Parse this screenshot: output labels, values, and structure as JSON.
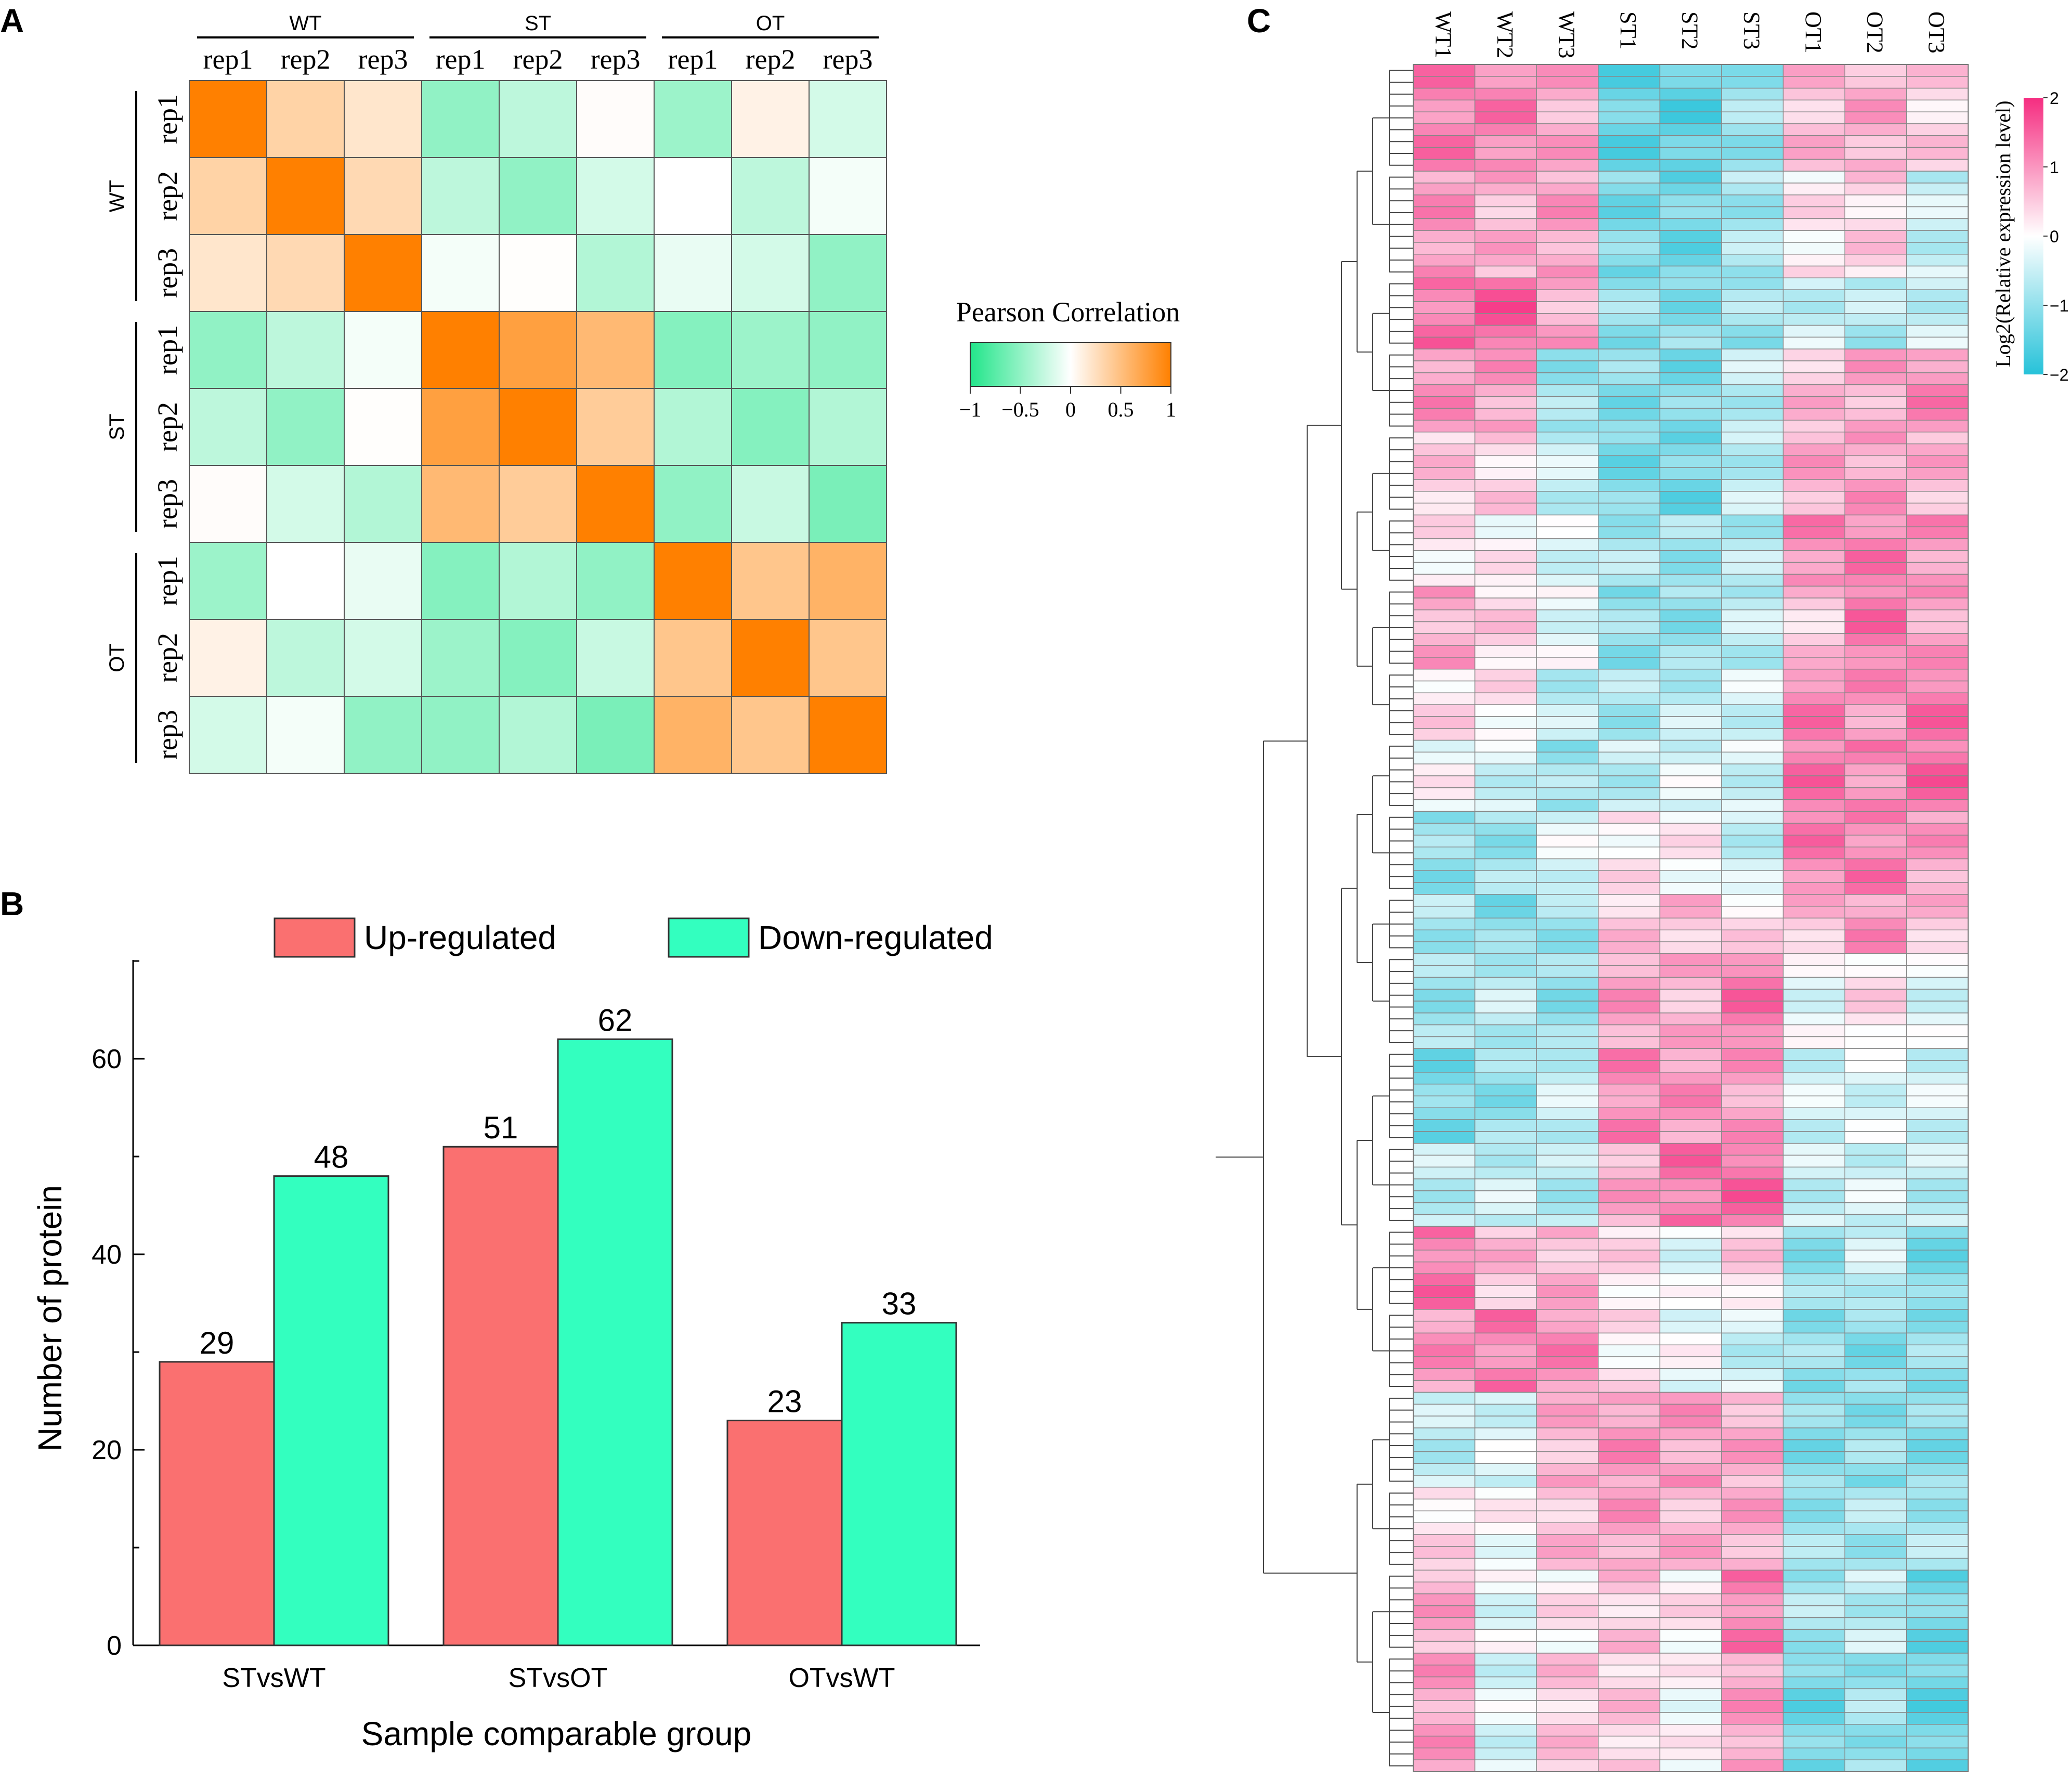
{
  "panels": {
    "a": "A",
    "b": "B",
    "c": "C"
  },
  "chart_data": [
    {
      "type": "heatmap",
      "panel": "A",
      "groups": [
        "WT",
        "ST",
        "OT"
      ],
      "reps": [
        "rep1",
        "rep2",
        "rep3"
      ],
      "samples": [
        "WT rep1",
        "WT rep2",
        "WT rep3",
        "ST rep1",
        "ST rep2",
        "ST rep3",
        "OT rep1",
        "OT rep2",
        "OT rep3"
      ],
      "matrix": [
        [
          1.0,
          0.35,
          0.2,
          -0.5,
          -0.3,
          0.02,
          -0.45,
          0.1,
          -0.2
        ],
        [
          0.35,
          1.0,
          0.3,
          -0.3,
          -0.5,
          -0.2,
          0.0,
          -0.3,
          -0.05
        ],
        [
          0.2,
          0.3,
          1.0,
          -0.05,
          0.01,
          -0.35,
          -0.1,
          -0.2,
          -0.5
        ],
        [
          -0.5,
          -0.3,
          -0.05,
          1.0,
          0.75,
          0.55,
          -0.55,
          -0.45,
          -0.5
        ],
        [
          -0.3,
          -0.5,
          0.01,
          0.75,
          1.0,
          0.4,
          -0.35,
          -0.55,
          -0.35
        ],
        [
          0.02,
          -0.2,
          -0.35,
          0.55,
          0.4,
          1.0,
          -0.5,
          -0.25,
          -0.6
        ],
        [
          -0.45,
          0.0,
          -0.1,
          -0.55,
          -0.35,
          -0.5,
          1.0,
          0.45,
          0.6
        ],
        [
          0.1,
          -0.3,
          -0.2,
          -0.45,
          -0.55,
          -0.25,
          0.45,
          1.0,
          0.45
        ],
        [
          -0.2,
          -0.05,
          -0.5,
          -0.5,
          -0.35,
          -0.6,
          0.6,
          0.45,
          1.0
        ]
      ],
      "colorbar": {
        "title": "Pearson Correlation",
        "ticks": [
          "−1",
          "−0.5",
          "0",
          "0.5",
          "1"
        ],
        "range": [
          -1,
          1
        ],
        "colors": {
          "low": "#22e58a",
          "mid": "#ffffff",
          "high": "#ff8000"
        }
      }
    },
    {
      "type": "bar",
      "panel": "B",
      "categories": [
        "STvsWT",
        "STvsOT",
        "OTvsWT"
      ],
      "series": [
        {
          "name": "Up-regulated",
          "values": [
            29,
            51,
            23
          ],
          "color": "#fa7070"
        },
        {
          "name": "Down-regulated",
          "values": [
            48,
            62,
            33
          ],
          "color": "#33ffbf"
        }
      ],
      "value_labels": [
        [
          "29",
          "51",
          "23"
        ],
        [
          "48",
          "62",
          "33"
        ]
      ],
      "xlabel": "Sample comparable group",
      "ylabel": "Number of protein",
      "ylim": [
        0,
        70
      ],
      "yticks": [
        "0",
        "20",
        "40",
        "60"
      ],
      "legend": "top"
    },
    {
      "type": "heatmap",
      "panel": "C",
      "columns": [
        "WT1",
        "WT2",
        "WT3",
        "ST1",
        "ST2",
        "ST3",
        "OT1",
        "OT2",
        "OT3"
      ],
      "row_clusters": [
        {
          "rows": 9,
          "profile": [
            1.2,
            1.2,
            0.8,
            -1.4,
            -1.5,
            -0.9,
            0.6,
            0.8,
            0.4
          ]
        },
        {
          "rows": 9,
          "profile": [
            1.0,
            0.7,
            0.9,
            -1.2,
            -1.3,
            -0.8,
            0.2,
            0.4,
            -0.5
          ]
        },
        {
          "rows": 6,
          "profile": [
            1.3,
            1.5,
            0.8,
            -1.0,
            -1.1,
            -0.9,
            -0.5,
            -0.7,
            -0.5
          ]
        },
        {
          "rows": 7,
          "profile": [
            1.0,
            0.9,
            -0.9,
            -1.1,
            -1.2,
            -0.6,
            0.6,
            0.8,
            1.1
          ]
        },
        {
          "rows": 7,
          "profile": [
            0.5,
            0.4,
            -0.5,
            -1.2,
            -1.3,
            -0.6,
            0.8,
            0.9,
            0.7
          ]
        },
        {
          "rows": 6,
          "profile": [
            0.2,
            0.1,
            -0.3,
            -0.8,
            -0.9,
            -0.7,
            1.1,
            1.2,
            1.0
          ]
        },
        {
          "rows": 7,
          "profile": [
            0.8,
            0.4,
            -0.2,
            -1.0,
            -1.0,
            -0.6,
            0.5,
            1.3,
            0.9
          ]
        },
        {
          "rows": 6,
          "profile": [
            0.3,
            0.2,
            -0.6,
            -0.8,
            -0.6,
            -0.4,
            1.2,
            1.0,
            1.3
          ]
        },
        {
          "rows": 6,
          "profile": [
            0.0,
            -0.4,
            -0.9,
            -0.6,
            -0.3,
            -0.4,
            1.3,
            1.1,
            1.4
          ]
        },
        {
          "rows": 7,
          "profile": [
            -1.0,
            -0.9,
            -0.3,
            0.2,
            0.1,
            -0.5,
            1.2,
            1.2,
            0.9
          ]
        },
        {
          "rows": 5,
          "profile": [
            -0.8,
            -1.1,
            -0.9,
            0.5,
            0.6,
            0.3,
            0.6,
            1.0,
            0.6
          ]
        },
        {
          "rows": 8,
          "profile": [
            -0.9,
            -0.6,
            -1.0,
            0.9,
            0.7,
            1.3,
            -0.2,
            0.3,
            -0.3
          ]
        },
        {
          "rows": 8,
          "profile": [
            -1.2,
            -1.0,
            -0.5,
            1.1,
            1.0,
            0.9,
            -0.4,
            -0.3,
            -0.4
          ]
        },
        {
          "rows": 7,
          "profile": [
            -0.6,
            -0.5,
            -0.7,
            0.8,
            1.3,
            1.4,
            -0.5,
            -0.4,
            -0.6
          ]
        },
        {
          "rows": 7,
          "profile": [
            1.3,
            0.6,
            0.7,
            0.3,
            -0.2,
            0.4,
            -1.0,
            -0.5,
            -1.2
          ]
        },
        {
          "rows": 7,
          "profile": [
            1.0,
            1.2,
            1.1,
            0.2,
            -0.1,
            -0.5,
            -1.0,
            -1.1,
            -1.0
          ]
        },
        {
          "rows": 8,
          "profile": [
            -0.6,
            -0.3,
            0.7,
            1.0,
            0.9,
            0.8,
            -1.1,
            -1.0,
            -1.1
          ]
        },
        {
          "rows": 7,
          "profile": [
            0.3,
            0.0,
            0.6,
            0.9,
            0.7,
            0.8,
            -0.9,
            -0.8,
            -0.8
          ]
        },
        {
          "rows": 7,
          "profile": [
            0.8,
            -0.2,
            0.2,
            0.5,
            0.2,
            1.2,
            -0.8,
            -0.6,
            -1.3
          ]
        },
        {
          "rows": 10,
          "profile": [
            0.9,
            -0.3,
            0.5,
            0.5,
            0.0,
            0.9,
            -1.3,
            -0.9,
            -1.4
          ]
        }
      ],
      "colorbar": {
        "title": "Log2(Relative expression level)",
        "ticks": [
          "2",
          "1",
          "0",
          "−1",
          "−2"
        ],
        "range": [
          -2,
          2
        ],
        "colors": {
          "low": "#26c2d9",
          "mid": "#ffffff",
          "high": "#f52d80"
        }
      }
    }
  ]
}
